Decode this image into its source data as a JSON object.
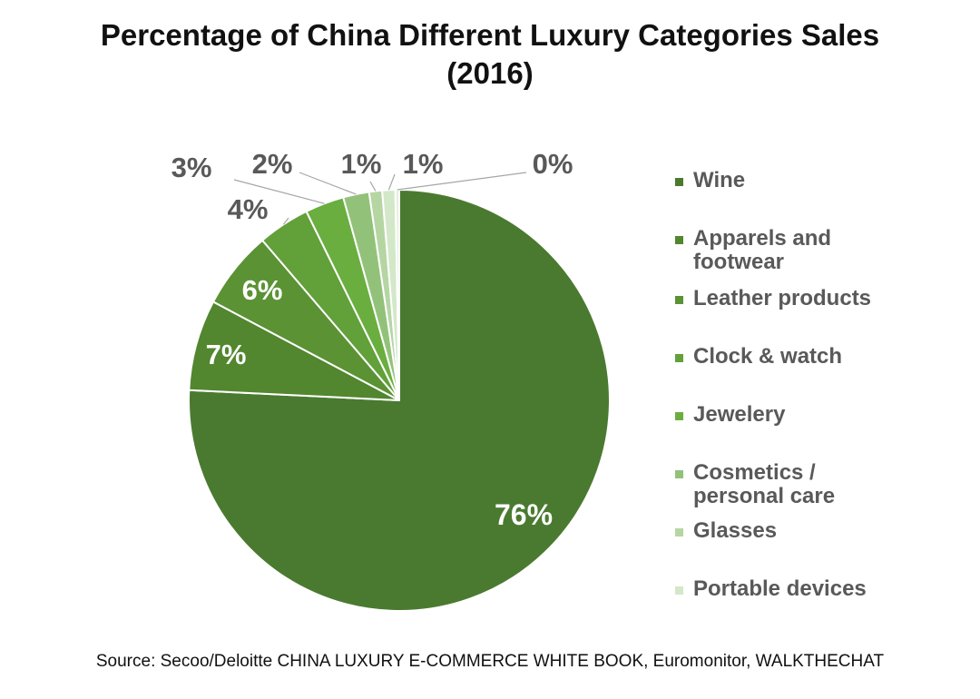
{
  "title_line1": "Percentage of China Different Luxury Categories Sales",
  "title_line2": "(2016)",
  "source": "Source: Secoo/Deloitte CHINA LUXURY E-COMMERCE WHITE BOOK, Euromonitor, WALKTHECHAT",
  "chart_data": {
    "type": "pie",
    "title": "Percentage of China Different Luxury Categories Sales (2016)",
    "unit": "%",
    "legend_position": "right",
    "slices": [
      {
        "label": "Wine",
        "value": 76,
        "display": "76%",
        "color": "#4a7a30"
      },
      {
        "label": "Apparels and footwear",
        "value": 7,
        "display": "7%",
        "color": "#52862f"
      },
      {
        "label": "Leather products",
        "value": 6,
        "display": "6%",
        "color": "#5a9234"
      },
      {
        "label": "Clock & watch",
        "value": 4,
        "display": "4%",
        "color": "#62a03a"
      },
      {
        "label": "Jewelery",
        "value": 3,
        "display": "3%",
        "color": "#6aae3f"
      },
      {
        "label": "Cosmetics / personal care",
        "value": 2,
        "display": "2%",
        "color": "#92c27a"
      },
      {
        "label": "Glasses",
        "value": 1,
        "display": "1%",
        "color": "#b5d6a2"
      },
      {
        "label": "Portable devices",
        "value": 1,
        "display": "1%",
        "color": "#d3e8c8"
      },
      {
        "label": "",
        "value": 0.3,
        "display": "0%",
        "color": "#e6f1de"
      }
    ]
  },
  "legend": [
    {
      "label": "Wine",
      "color": "#4a7a30"
    },
    {
      "label": "Apparels and footwear",
      "color": "#52862f"
    },
    {
      "label": "Leather products",
      "color": "#5a9234"
    },
    {
      "label": "Clock & watch",
      "color": "#62a03a"
    },
    {
      "label": "Jewelery",
      "color": "#6aae3f"
    },
    {
      "label": "Cosmetics / personal care",
      "color": "#92c27a"
    },
    {
      "label": "Glasses",
      "color": "#b5d6a2"
    },
    {
      "label": "Portable devices",
      "color": "#d3e8c8"
    }
  ]
}
